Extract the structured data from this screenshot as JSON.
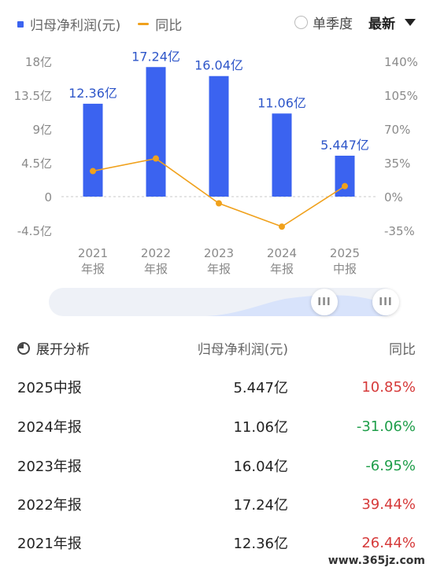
{
  "legend": {
    "series1": "归母净利润(元)",
    "series2": "同比"
  },
  "controls": {
    "quarterly_label": "单季度",
    "select_label": "最新"
  },
  "chart_data": {
    "type": "bar",
    "categories": [
      "2021\n年报",
      "2022\n年报",
      "2023\n年报",
      "2024\n年报",
      "2025\n中报"
    ],
    "series": [
      {
        "name": "归母净利润(元)",
        "type": "bar",
        "values": [
          12.36,
          17.24,
          16.04,
          11.06,
          5.447
        ],
        "labels": [
          "12.36亿",
          "17.24亿",
          "16.04亿",
          "11.06亿",
          "5.447亿"
        ],
        "color": "#3b63f0"
      },
      {
        "name": "同比",
        "type": "line",
        "values": [
          26.44,
          39.44,
          -6.95,
          -31.06,
          10.85
        ],
        "color": "#f0a11c"
      }
    ],
    "y_left": {
      "ticks": [
        18,
        13.5,
        9,
        4.5,
        0,
        -4.5
      ],
      "tick_labels": [
        "18亿",
        "13.5亿",
        "9亿",
        "4.5亿",
        "0",
        "-4.5亿"
      ],
      "ylim": [
        -4.5,
        18
      ]
    },
    "y_right": {
      "ticks": [
        140,
        105,
        70,
        35,
        0,
        -35
      ],
      "tick_labels": [
        "140%",
        "105%",
        "70%",
        "35%",
        "0%",
        "-35%"
      ],
      "ylim": [
        -35,
        140
      ]
    }
  },
  "table": {
    "header": {
      "period": "展开分析",
      "profit": "归母净利润(元)",
      "yoy": "同比"
    },
    "rows": [
      {
        "period": "2025中报",
        "profit": "5.447亿",
        "yoy": "10.85%",
        "dir": "up"
      },
      {
        "period": "2024年报",
        "profit": "11.06亿",
        "yoy": "-31.06%",
        "dir": "down"
      },
      {
        "period": "2023年报",
        "profit": "16.04亿",
        "yoy": "-6.95%",
        "dir": "down"
      },
      {
        "period": "2022年报",
        "profit": "17.24亿",
        "yoy": "39.44%",
        "dir": "up"
      },
      {
        "period": "2021年报",
        "profit": "12.36亿",
        "yoy": "26.44%",
        "dir": "up"
      }
    ]
  },
  "slider": {
    "handle_glyph": "III"
  },
  "watermark": "www.365jz.com"
}
